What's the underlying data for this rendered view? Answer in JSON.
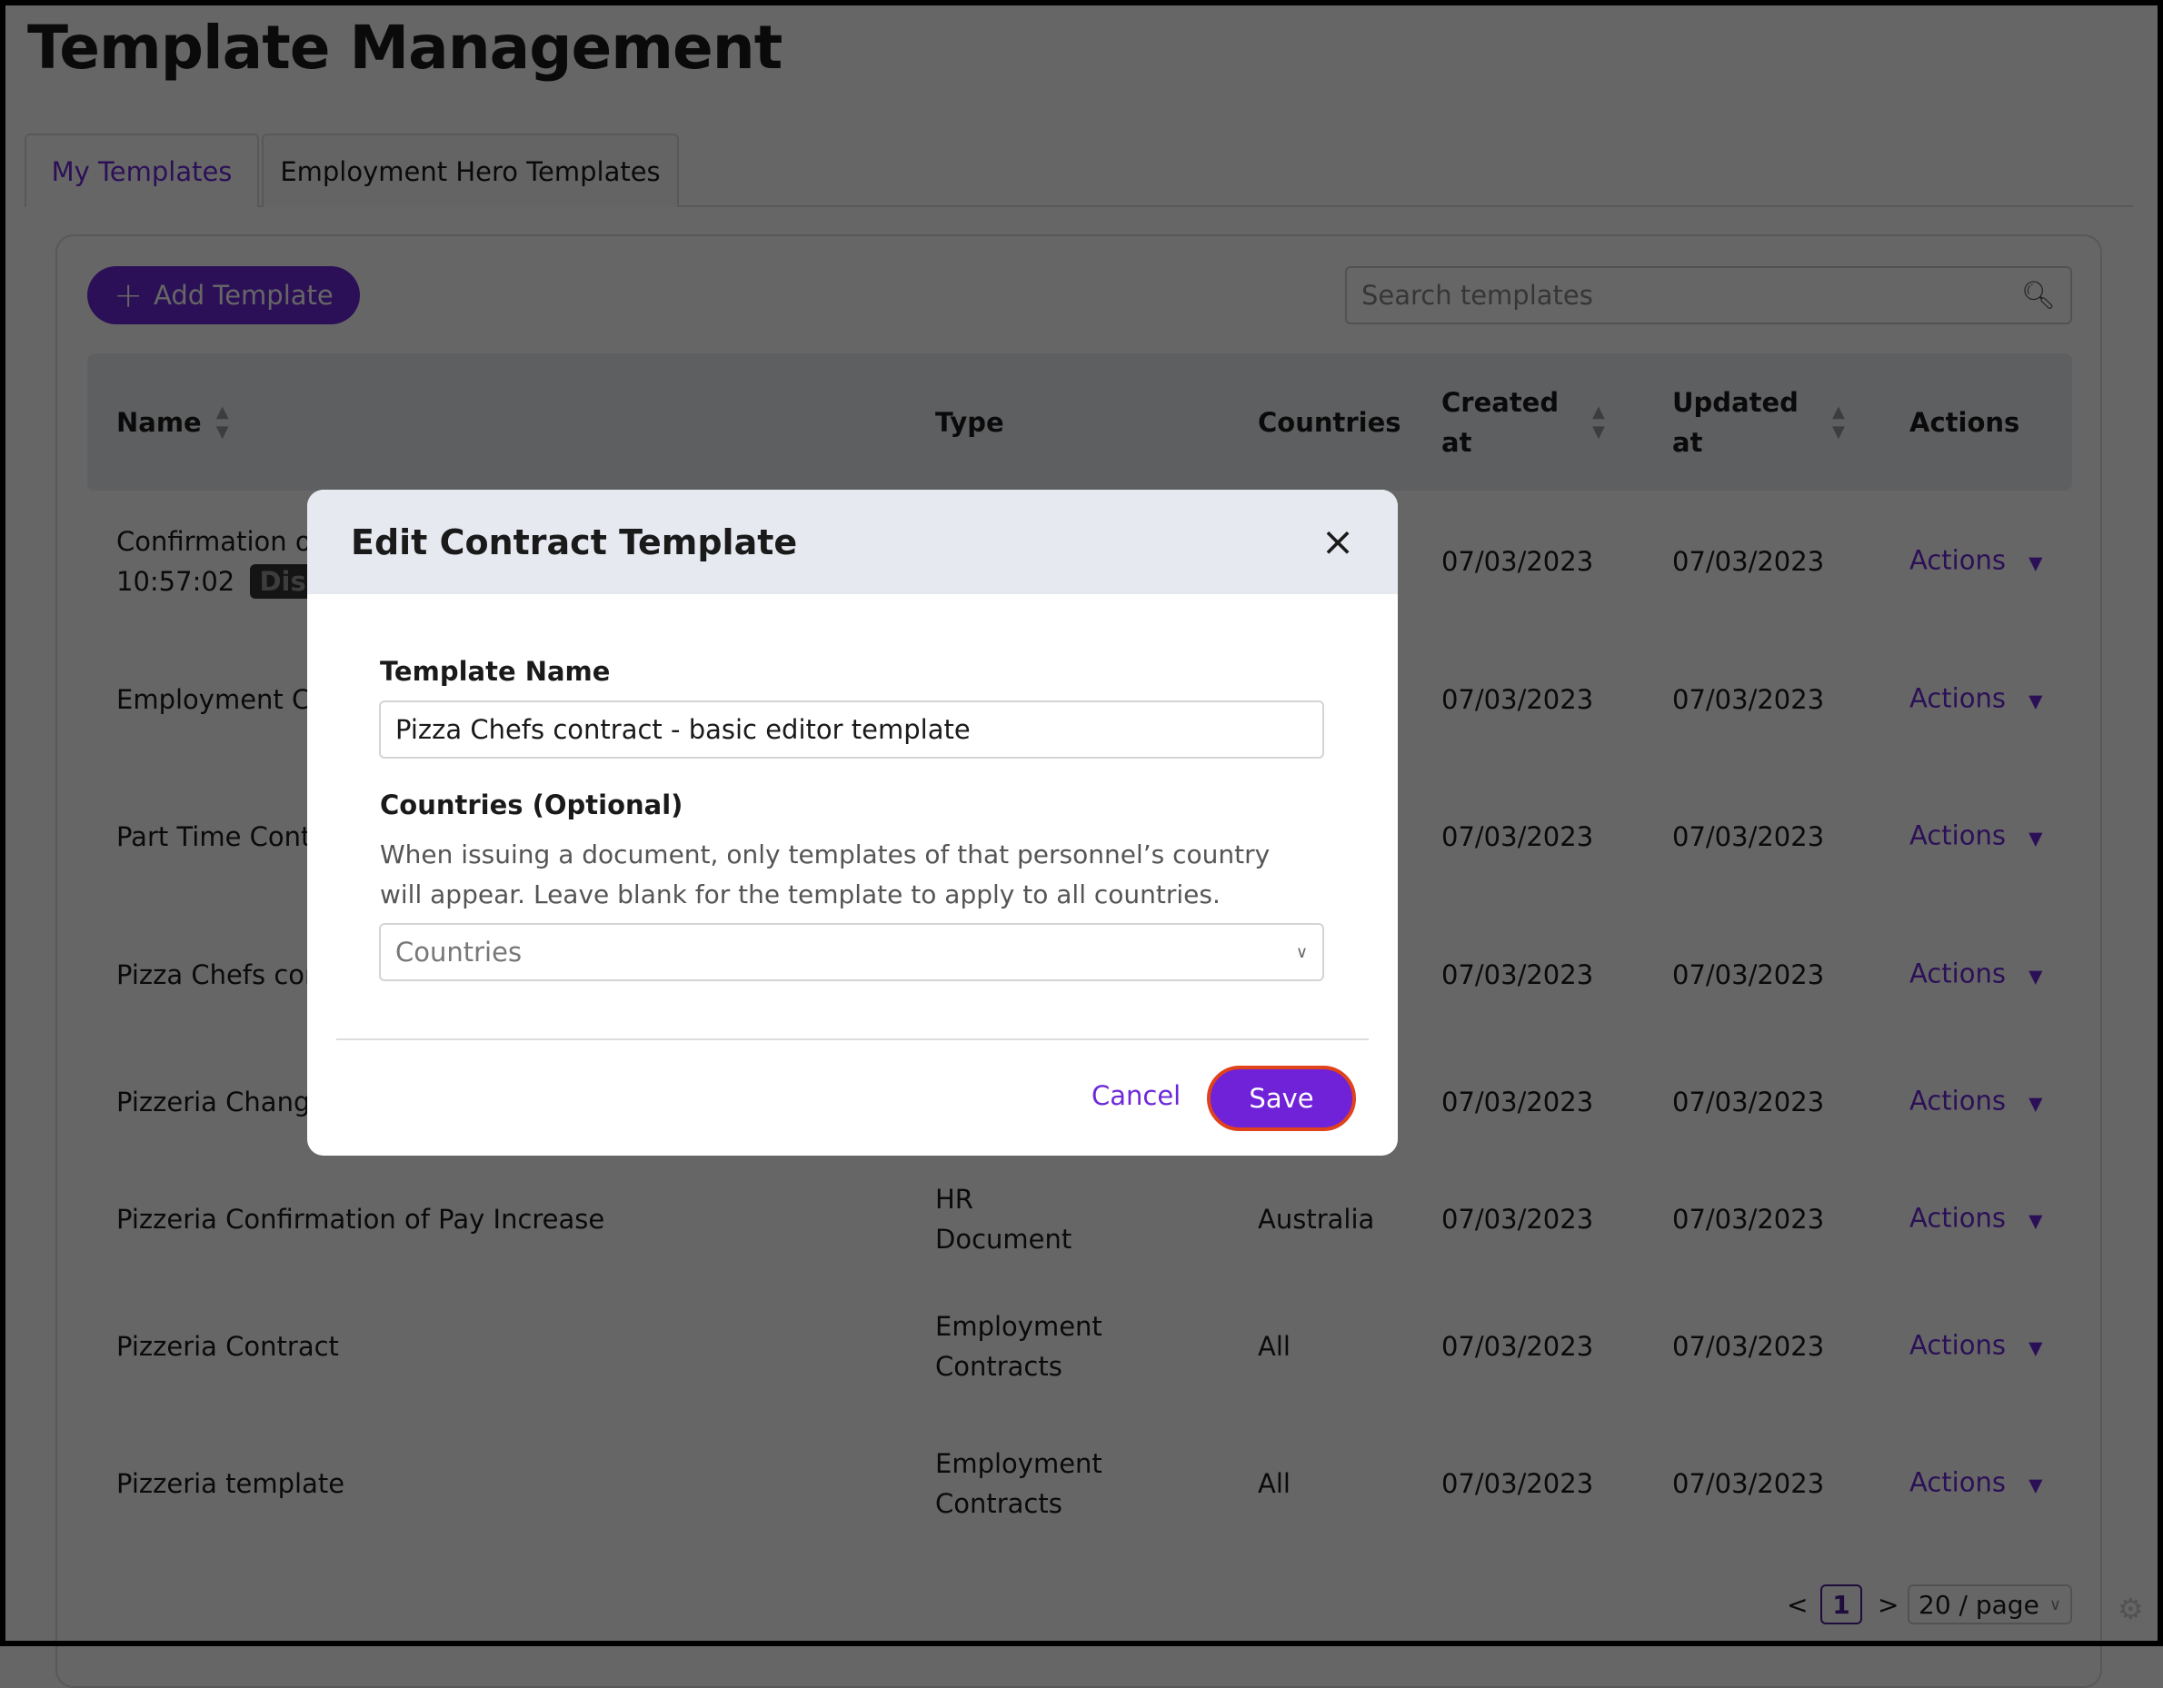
{
  "page": {
    "title": "Template Management"
  },
  "tabs": [
    {
      "label": "My Templates",
      "active": true
    },
    {
      "label": "Employment Hero Templates",
      "active": false
    }
  ],
  "toolbar": {
    "add_label": "Add Template",
    "search_placeholder": "Search templates"
  },
  "table": {
    "headers": {
      "name": "Name",
      "type": "Type",
      "countries": "Countries",
      "created": "Created at",
      "updated": "Updated at",
      "actions": "Actions"
    },
    "rows": [
      {
        "name": "Confirmation of",
        "name2": "10:57:02",
        "badge": "Disab",
        "type": "",
        "countries": "",
        "created": "07/03/2023",
        "updated": "07/03/2023",
        "action": "Actions"
      },
      {
        "name": "Employment Co",
        "type": "",
        "countries": "",
        "created": "07/03/2023",
        "updated": "07/03/2023",
        "action": "Actions"
      },
      {
        "name": "Part Time Contr",
        "type": "",
        "countries": "",
        "created": "07/03/2023",
        "updated": "07/03/2023",
        "action": "Actions"
      },
      {
        "name": "Pizza Chefs con",
        "type": "",
        "countries": "",
        "created": "07/03/2023",
        "updated": "07/03/2023",
        "action": "Actions"
      },
      {
        "name": "Pizzeria Change",
        "type": "",
        "countries": "",
        "created": "07/03/2023",
        "updated": "07/03/2023",
        "action": "Actions"
      },
      {
        "name": "Pizzeria Confirmation of Pay Increase",
        "type": "HR Document",
        "countries": "Australia",
        "created": "07/03/2023",
        "updated": "07/03/2023",
        "action": "Actions"
      },
      {
        "name": "Pizzeria Contract",
        "type": "Employment Contracts",
        "countries": "All",
        "created": "07/03/2023",
        "updated": "07/03/2023",
        "action": "Actions"
      },
      {
        "name": "Pizzeria template",
        "type": "Employment Contracts",
        "countries": "All",
        "created": "07/03/2023",
        "updated": "07/03/2023",
        "action": "Actions"
      }
    ]
  },
  "pagination": {
    "current": "1",
    "page_size": "20 / page"
  },
  "modal": {
    "title": "Edit Contract Template",
    "name_label": "Template Name",
    "name_value": "Pizza Chefs contract - basic editor template",
    "countries_label": "Countries (Optional)",
    "countries_desc": "When issuing a document, only templates of that personnel’s country will appear. Leave blank for the template to apply to all countries.",
    "countries_placeholder": "Countries",
    "cancel": "Cancel",
    "save": "Save"
  },
  "colors": {
    "accent": "#6d28d9",
    "save_border": "#e0421b"
  }
}
